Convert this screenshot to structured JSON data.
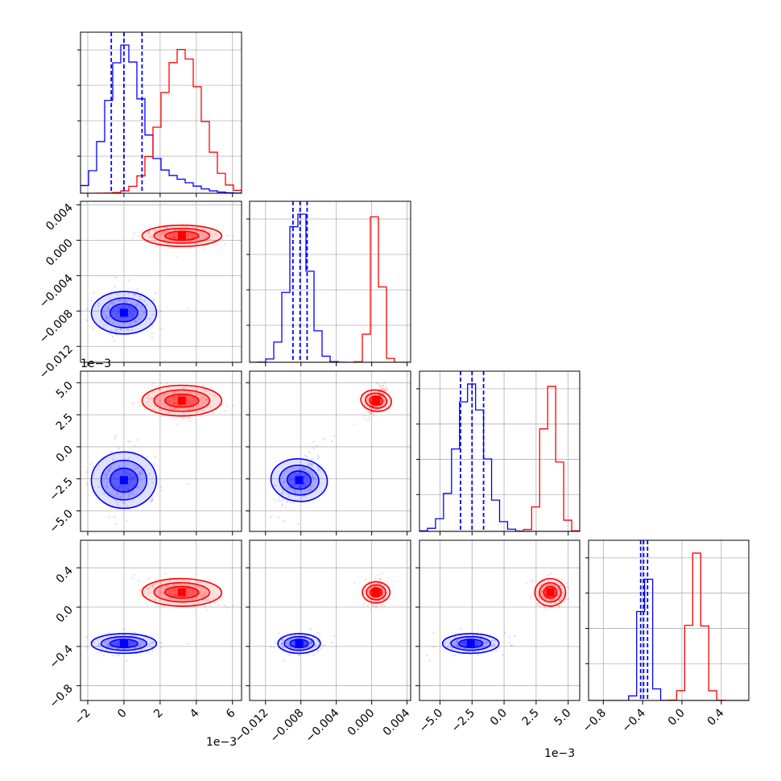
{
  "chart_data": {
    "type": "corner",
    "parameters": 4,
    "series": [
      {
        "color": "#0000ff",
        "means": [
          0.0,
          -0.0082,
          -0.0026,
          -0.37
        ],
        "sds": [
          0.0009,
          0.0012,
          0.0011,
          0.05
        ],
        "hist_quantiles": [
          [
            -0.0007,
            0.0,
            0.001
          ],
          [
            -0.0089,
            -0.0081,
            -0.0073
          ],
          [
            -0.0034,
            -0.0025,
            -0.0016
          ],
          [
            -0.42,
            -0.39,
            -0.35
          ]
        ]
      },
      {
        "color": "#ff0000",
        "means": [
          0.0032,
          0.0005,
          0.0036,
          0.15
        ],
        "sds": [
          0.0011,
          0.0006,
          0.0006,
          0.07
        ]
      }
    ],
    "axes": [
      {
        "range": [
          -0.0024,
          0.0065
        ],
        "ticks": [
          -0.002,
          0.0,
          0.002,
          0.004,
          0.006
        ],
        "tick_labels": [
          "−2",
          "0",
          "2",
          "4",
          "6"
        ],
        "offset_label": "1e−3"
      },
      {
        "range": [
          -0.0138,
          0.0044
        ],
        "ticks": [
          -0.012,
          -0.008,
          -0.004,
          0.0,
          0.004
        ],
        "tick_labels": [
          "−0.012",
          "−0.008",
          "−0.004",
          "0.000",
          "0.004"
        ],
        "offset_label": ""
      },
      {
        "range": [
          -0.0066,
          0.0059
        ],
        "ticks": [
          -0.005,
          -0.0025,
          0.0,
          0.0025,
          0.005
        ],
        "tick_labels": [
          "−5.0",
          "−2.5",
          "0.0",
          "2.5",
          "5.0"
        ],
        "offset_label": "1e−3"
      },
      {
        "range": [
          -0.95,
          0.68
        ],
        "ticks": [
          -0.8,
          -0.4,
          0.0,
          0.4
        ],
        "tick_labels": [
          "−0.8",
          "−0.4",
          "0.0",
          "0.4"
        ],
        "offset_label": ""
      }
    ],
    "grid": true,
    "legend": "none"
  }
}
